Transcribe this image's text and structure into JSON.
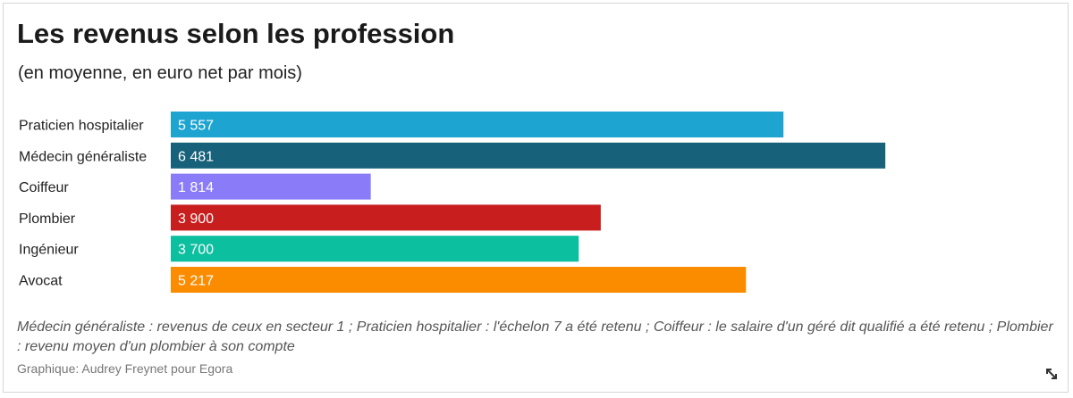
{
  "chart_data": {
    "type": "bar",
    "orientation": "horizontal",
    "title": "Les revenus selon les profession",
    "subtitle": "(en moyenne, en euro net par mois)",
    "categories": [
      "Praticien hospitalier",
      "Médecin généraliste",
      "Coiffeur",
      "Plombier",
      "Ingénieur",
      "Avocat"
    ],
    "values": [
      5557,
      6481,
      1814,
      3900,
      3700,
      5217
    ],
    "value_labels": [
      "5 557",
      "6 481",
      "1 814",
      "3 900",
      "3 700",
      "5 217"
    ],
    "colors": [
      "#1da4d0",
      "#17617a",
      "#8a7cf8",
      "#c81e1e",
      "#0cbf9f",
      "#fb8c00"
    ],
    "xlim": [
      0,
      8000
    ],
    "grid": false,
    "legend": "none"
  },
  "note": "Médecin généraliste : revenus de ceux en secteur 1 ; Praticien hospitalier : l'échelon 7 a été retenu ; Coiffeur : le salaire d'un géré dit qualifié a été retenu ; Plombier : revenu moyen d'un plombier à son compte",
  "source": "Graphique: Audrey Freynet pour Egora",
  "icons": {
    "expand": "expand-icon"
  }
}
